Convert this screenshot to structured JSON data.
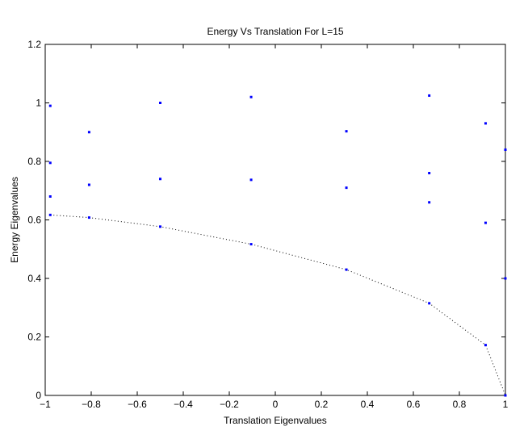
{
  "chart_data": {
    "type": "scatter",
    "title": "Energy Vs Translation For L=15",
    "xlabel": "Translation Eigenvalues",
    "ylabel": "Energy Eigenvalues",
    "xlim": [
      -1,
      1
    ],
    "ylim": [
      0,
      1.2
    ],
    "x_ticks": [
      -1,
      -0.8,
      -0.6,
      -0.4,
      -0.2,
      0,
      0.2,
      0.4,
      0.6,
      0.8,
      1
    ],
    "x_tick_labels": [
      "−1",
      "−0.8",
      "−0.6",
      "−0.4",
      "−0.2",
      "0",
      "0.2",
      "0.4",
      "0.6",
      "0.8",
      "1"
    ],
    "y_ticks": [
      0,
      0.2,
      0.4,
      0.6,
      0.8,
      1,
      1.2
    ],
    "y_tick_labels": [
      "0",
      "0.2",
      "0.4",
      "0.6",
      "0.8",
      "1",
      "1.2"
    ],
    "grid": false,
    "legend": "none",
    "series": [
      {
        "style": "points",
        "color": "#0000ff",
        "x": [
          -0.978,
          -0.978,
          -0.978,
          -0.978,
          -0.809,
          -0.809,
          -0.809,
          -0.5,
          -0.5,
          -0.5,
          -0.105,
          -0.105,
          -0.105,
          0.309,
          0.309,
          0.309,
          0.669,
          0.669,
          0.669,
          0.669,
          0.914,
          0.914,
          0.914,
          1.0,
          1.0,
          1.0
        ],
        "y": [
          0.99,
          0.795,
          0.68,
          0.617,
          0.9,
          0.72,
          0.608,
          1.0,
          0.74,
          0.577,
          1.02,
          0.737,
          0.517,
          0.903,
          0.71,
          0.43,
          1.025,
          0.76,
          0.66,
          0.315,
          0.93,
          0.59,
          0.172,
          0.84,
          0.4,
          0.0
        ]
      },
      {
        "style": "dotted-line",
        "color": "#000000",
        "x": [
          -0.978,
          -0.809,
          -0.5,
          -0.105,
          0.309,
          0.669,
          0.914,
          1.0
        ],
        "y": [
          0.617,
          0.608,
          0.577,
          0.517,
          0.43,
          0.315,
          0.172,
          0.0
        ]
      }
    ]
  }
}
